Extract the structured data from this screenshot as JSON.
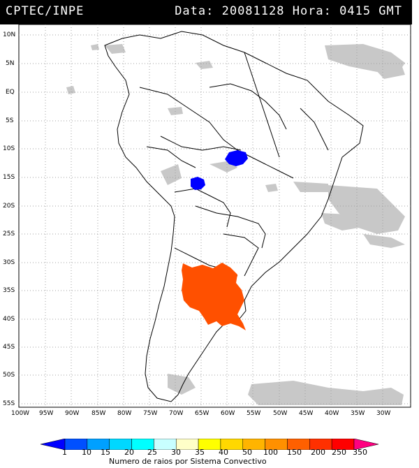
{
  "header": {
    "left": "CPTEC/INPE",
    "right": "Data: 20081128 Hora: 0415 GMT"
  },
  "lat_labels": [
    "10N",
    "5N",
    "EQ",
    "5S",
    "10S",
    "15S",
    "20S",
    "25S",
    "30S",
    "35S",
    "40S",
    "45S",
    "50S",
    "55S"
  ],
  "lon_labels": [
    "100W",
    "95W",
    "90W",
    "85W",
    "80W",
    "75W",
    "70W",
    "65W",
    "60W",
    "55W",
    "50W",
    "45W",
    "40W",
    "35W",
    "30W"
  ],
  "colorbar": {
    "values": [
      "1",
      "10",
      "15",
      "20",
      "25",
      "30",
      "35",
      "40",
      "50",
      "100",
      "150",
      "200",
      "250",
      "350"
    ],
    "colors": [
      "#0000ff",
      "#0050ff",
      "#00a0ff",
      "#00d8ff",
      "#00ffff",
      "#c8ffff",
      "#ffffc8",
      "#ffff00",
      "#ffd800",
      "#ffb400",
      "#ff9000",
      "#ff6000",
      "#ff3000",
      "#ff0000",
      "#ff0080"
    ],
    "title": "Numero de raios por Sistema Convectivo"
  },
  "systems": [
    {
      "color": "#0000ff"
    },
    {
      "color": "#0000ff"
    },
    {
      "color": "#ff5000"
    }
  ]
}
